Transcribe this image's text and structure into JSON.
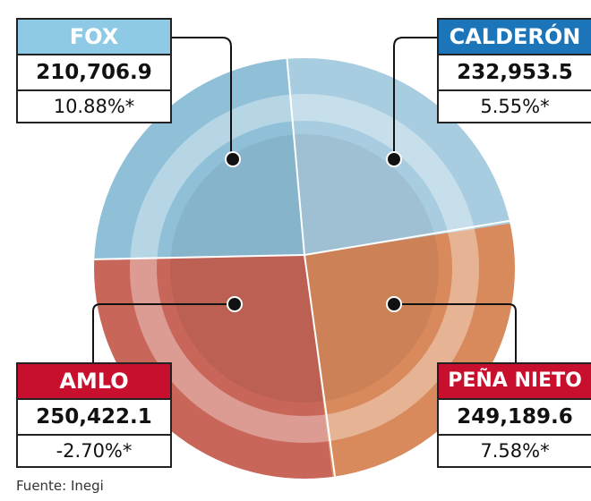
{
  "panels": [
    {
      "name": "FOX",
      "value": "210,706.9",
      "change": "10.88%*"
    },
    {
      "name": "CALDERÓN",
      "value": "232,953.5",
      "change": "5.55%*"
    },
    {
      "name": "AMLO",
      "value": "250,422.1",
      "change": "-2.70%*"
    },
    {
      "name": "PEÑA NIETO",
      "value": "249,189.6",
      "change": "7.58%*"
    }
  ],
  "source": "Fuente: Inegi"
}
